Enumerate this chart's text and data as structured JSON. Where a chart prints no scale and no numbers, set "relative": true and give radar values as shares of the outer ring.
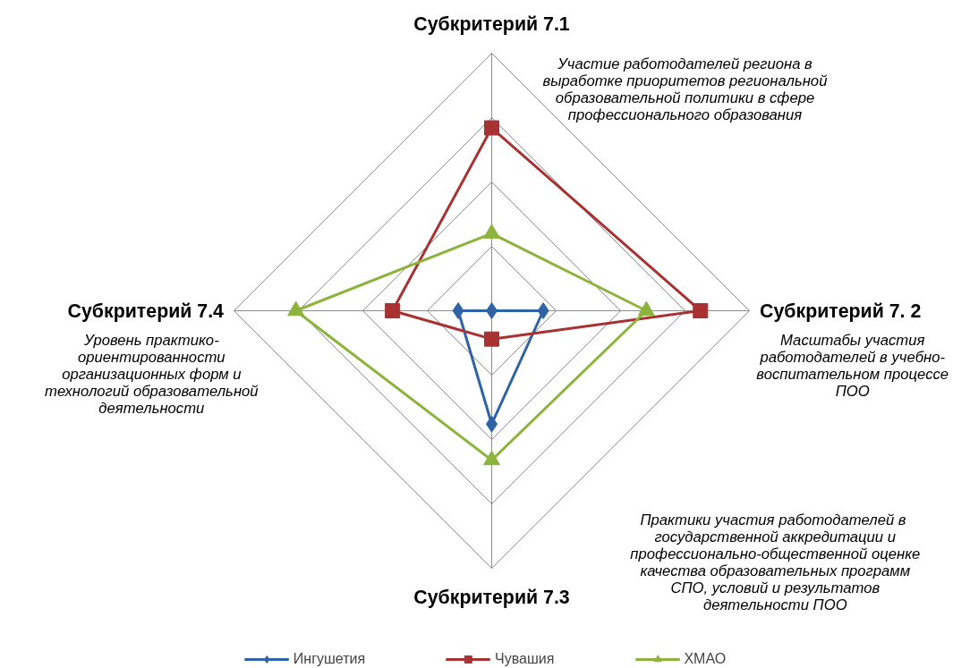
{
  "chart_data": {
    "type": "radar",
    "relative": true,
    "grid": true,
    "legend": "bottom",
    "line_style": "solid",
    "categories": [
      "Субкритерий 7.1",
      "Субкритерий 7. 2",
      "Субкритерий 7.3",
      "Субкритерий 7.4"
    ],
    "series": [
      {
        "name": "Ингушетия",
        "color": "#2e63a6",
        "marker": "diamond",
        "values": [
          0,
          0.2,
          0.44,
          0.13
        ]
      },
      {
        "name": "Чувашия",
        "color": "#a83232",
        "marker": "square",
        "values": [
          0.71,
          0.81,
          0.11,
          0.385
        ]
      },
      {
        "name": "ХМАО",
        "color": "#8cb43c",
        "marker": "triangle",
        "values": [
          0.3,
          0.6,
          0.58,
          0.76
        ]
      }
    ],
    "annotations": [
      "Участие работодателей региона в\nвыработке приоритетов региональной\nобразовательной политики в сфере\nпрофессионального образования",
      "Масштабы участия\nработодателей в учебно-\nвоспитательном процессе\nПОО",
      "Практики участия работодателей  в\nгосударственной аккредитации и\nпрофессионально-общественной оценке\nкачества образовательных программ\nСПО, условий и результатов\nдеятельности ПОО",
      "Уровень практико-\nориентированности\nорганизационных форм и\nтехнологий образовательной\nдеятельности"
    ]
  }
}
